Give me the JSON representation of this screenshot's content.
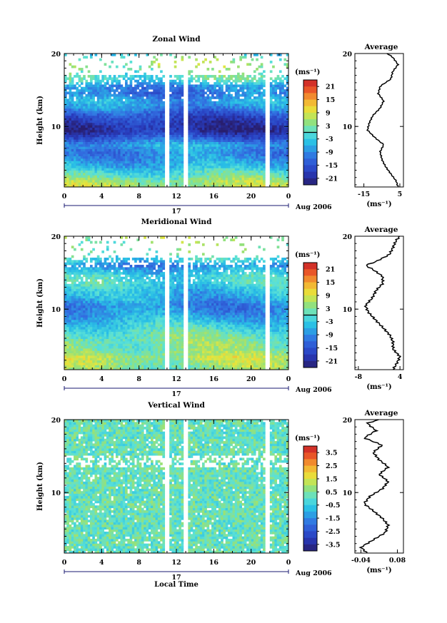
{
  "chart_data": [
    {
      "type": "heatmap",
      "title": "Zonal Wind",
      "ylabel": "Height (km)",
      "x_ticks": [
        "0",
        "4",
        "8",
        "12",
        "16",
        "20",
        "0"
      ],
      "y_ticks": [
        "10",
        "20"
      ],
      "xlim": [
        0,
        24
      ],
      "ylim": [
        1.7,
        20
      ],
      "day_label": "17",
      "date_label": "Aug 2006",
      "colorbar": {
        "unit": "(ms⁻¹)",
        "ticks": [
          "21",
          "15",
          "9",
          "3",
          "-3",
          "-9",
          "-15",
          "-21"
        ],
        "range": [
          -24,
          24
        ]
      },
      "gaps_hours": [
        [
          10.8,
          11.3
        ],
        [
          12.8,
          13.3
        ],
        [
          21.5,
          21.9
        ]
      ],
      "average": {
        "title": "Average",
        "xlabel": "(ms⁻¹)",
        "x_ticks": [
          "-15",
          "5"
        ],
        "y_ticks": [
          "10",
          "20"
        ],
        "xlim": [
          -20,
          7
        ],
        "height_km": [
          1.7,
          2.5,
          3.5,
          4.5,
          5.5,
          6.5,
          7.5,
          8.5,
          9.5,
          10.5,
          11.5,
          12.5,
          13.5,
          14.5,
          15.5,
          16.5,
          17.5,
          18.5,
          19.5,
          20.0
        ],
        "wind_ms": [
          4,
          3,
          0,
          -3,
          -5,
          -6,
          -4,
          -9,
          -13,
          -12,
          -10,
          -6,
          -4,
          -7,
          -6,
          0,
          1,
          4,
          1,
          -2
        ]
      }
    },
    {
      "type": "heatmap",
      "title": "Meridional Wind",
      "ylabel": "Height (km)",
      "x_ticks": [
        "0",
        "4",
        "8",
        "12",
        "16",
        "20",
        "0"
      ],
      "y_ticks": [
        "10",
        "20"
      ],
      "xlim": [
        0,
        24
      ],
      "ylim": [
        1.7,
        20
      ],
      "day_label": "17",
      "date_label": "Aug 2006",
      "colorbar": {
        "unit": "(ms⁻¹)",
        "ticks": [
          "21",
          "15",
          "9",
          "3",
          "-3",
          "-9",
          "-15",
          "-21"
        ],
        "range": [
          -24,
          24
        ]
      },
      "gaps_hours": [
        [
          10.8,
          11.3
        ],
        [
          12.8,
          13.3
        ],
        [
          21.5,
          21.9
        ]
      ],
      "average": {
        "title": "Average",
        "xlabel": "(ms⁻¹)",
        "x_ticks": [
          "-8",
          "4"
        ],
        "y_ticks": [
          "10",
          "20"
        ],
        "xlim": [
          -9,
          5
        ],
        "height_km": [
          1.7,
          2.5,
          3.5,
          4.5,
          5.5,
          6.5,
          7.5,
          8.5,
          9.5,
          10.5,
          11.5,
          12.5,
          13.5,
          14.5,
          15.5,
          16.0,
          16.5,
          17.5,
          18.5,
          19.5,
          20.0
        ],
        "wind_ms": [
          2,
          3,
          4,
          2,
          2,
          1,
          -1,
          -3,
          -5,
          -6,
          -4,
          -3,
          -1,
          -1,
          -4,
          -6,
          -3,
          1,
          2,
          3,
          4
        ]
      }
    },
    {
      "type": "heatmap",
      "title": "Vertical Wind",
      "ylabel": "Height (km)",
      "xlabel": "Local Time",
      "x_ticks": [
        "0",
        "4",
        "8",
        "12",
        "16",
        "20",
        "0"
      ],
      "y_ticks": [
        "10",
        "20"
      ],
      "xlim": [
        0,
        24
      ],
      "ylim": [
        1.7,
        20
      ],
      "day_label": "17",
      "date_label": "Aug 2006",
      "colorbar": {
        "unit": "(ms⁻¹)",
        "ticks": [
          "3.5",
          "2.5",
          "1.5",
          "0.5",
          "-0.5",
          "-1.5",
          "-2.5",
          "-3.5"
        ],
        "range": [
          -4,
          4
        ]
      },
      "gaps_hours": [
        [
          10.8,
          11.3
        ],
        [
          12.8,
          13.3
        ],
        [
          21.5,
          21.9
        ]
      ],
      "average": {
        "title": "Average",
        "xlabel": "(ms⁻¹)",
        "x_ticks": [
          "-0.04",
          "0.08"
        ],
        "y_ticks": [
          "10",
          "20"
        ],
        "xlim": [
          -0.06,
          0.1
        ],
        "height_km": [
          1.7,
          2.5,
          3.5,
          4.5,
          5.5,
          6.5,
          7.5,
          8.5,
          9.5,
          10.5,
          11.5,
          12.5,
          13.5,
          14.5,
          15.5,
          16.5,
          17.5,
          18.5,
          19.5,
          20.0
        ],
        "wind_ms": [
          -0.02,
          -0.04,
          0.0,
          0.04,
          0.05,
          0.03,
          0.0,
          -0.03,
          -0.01,
          0.03,
          0.05,
          0.02,
          0.05,
          0.02,
          0.0,
          0.03,
          -0.03,
          0.01,
          -0.02,
          0.02
        ]
      }
    }
  ]
}
